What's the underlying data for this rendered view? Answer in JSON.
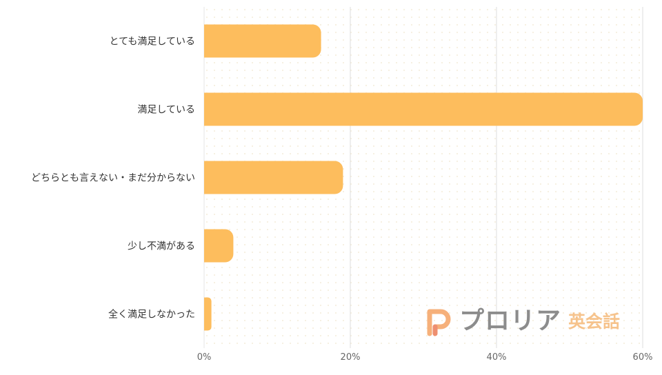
{
  "chart_data": {
    "type": "bar",
    "orientation": "horizontal",
    "categories": [
      "とても満足している",
      "満足している",
      "どちらとも言えない・まだ分からない",
      "少し不満がある",
      "全く満足しなかった"
    ],
    "values": [
      16,
      60,
      19,
      4,
      1
    ],
    "xlim": [
      0,
      60
    ],
    "x_ticks": [
      "0%",
      "20%",
      "40%",
      "60%"
    ],
    "x_tick_values": [
      0,
      20,
      40,
      60
    ],
    "grid": "vertical",
    "bar_color": "#fdbd5d",
    "gridline_color": "#dddddd"
  },
  "watermark": {
    "brand": "プロリア",
    "sub": "英会話",
    "icon": "proria-logo-icon",
    "brand_color": "#8c8c8c",
    "accent_color": "#f6b07a"
  }
}
